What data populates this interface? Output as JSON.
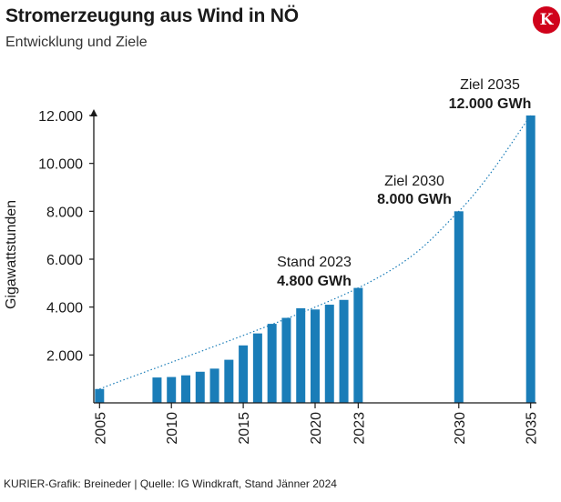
{
  "header": {
    "title": "Stromerzeugung aus Wind in NÖ",
    "subtitle": "Entwicklung und Ziele",
    "logo_letter": "K"
  },
  "footer": {
    "source": "KURIER-Grafik: Breineder | Quelle: IG Windkraft, Stand Jänner 2024"
  },
  "colors": {
    "bar": "#1a7db8",
    "trend": "#1a7db8",
    "logo": "#d0021b"
  },
  "chart_data": {
    "type": "bar",
    "title": "Stromerzeugung aus Wind in NÖ",
    "subtitle": "Entwicklung und Ziele",
    "xlabel": "",
    "ylabel": "Gigawattstunden",
    "unit": "GWh",
    "ylim": [
      0,
      12500
    ],
    "xlim": [
      2004.6,
      2035.4
    ],
    "yticks": [
      2000,
      4000,
      6000,
      8000,
      10000,
      12000
    ],
    "ytick_labels": [
      "2.000",
      "4.000",
      "6.000",
      "8.000",
      "10.000",
      "12.000"
    ],
    "xticks": [
      2005,
      2010,
      2015,
      2020,
      2023,
      2030,
      2035
    ],
    "xtick_labels": [
      "2005",
      "2010",
      "2015",
      "2020",
      "2023",
      "2030",
      "2035"
    ],
    "series": [
      {
        "name": "Stromerzeugung",
        "x": [
          2005,
          2009,
          2010,
          2011,
          2012,
          2013,
          2014,
          2015,
          2016,
          2017,
          2018,
          2019,
          2020,
          2021,
          2022,
          2023,
          2030,
          2035
        ],
        "values": [
          580,
          1060,
          1080,
          1150,
          1300,
          1430,
          1800,
          2400,
          2900,
          3300,
          3550,
          3950,
          3900,
          4100,
          4300,
          4800,
          8000,
          12000
        ]
      }
    ],
    "trend_line": "dotted",
    "annotations": [
      {
        "x": 2023,
        "value": 4800,
        "label": "Stand 2023",
        "value_label": "4.800 GWh"
      },
      {
        "x": 2030,
        "value": 8000,
        "label": "Ziel 2030",
        "value_label": "8.000 GWh"
      },
      {
        "x": 2035,
        "value": 12000,
        "label": "Ziel 2035",
        "value_label": "12.000 GWh"
      }
    ]
  }
}
